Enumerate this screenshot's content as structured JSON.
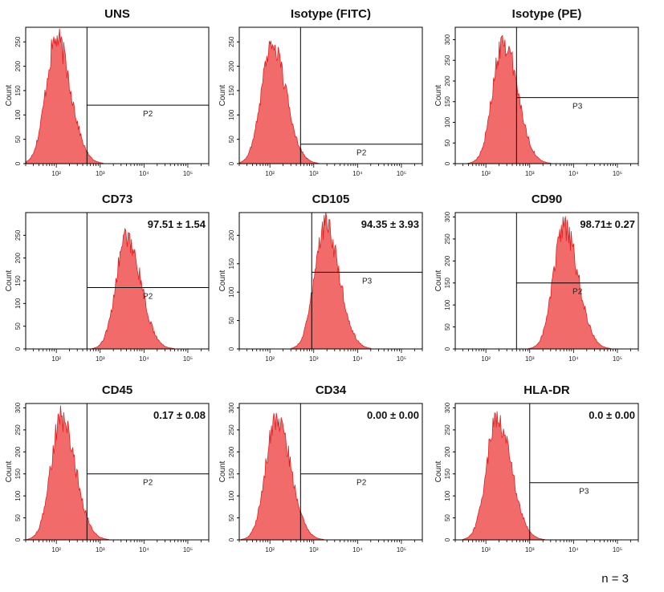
{
  "figure": {
    "footnote": "n = 3"
  },
  "colors": {
    "fill": "#f26b6b",
    "stroke": "#e02020",
    "frame": "#000000"
  },
  "chart_data": [
    {
      "type": "histogram",
      "title": "UNS",
      "stat": "",
      "gate": "P2",
      "ylabel": "Count",
      "xscale": "log",
      "xlim": [
        20,
        300000
      ],
      "ylim": [
        0,
        280
      ],
      "yticks": [
        0,
        50,
        100,
        150,
        200,
        250
      ],
      "xticks": [
        {
          "v": 100,
          "label": "10²"
        },
        {
          "v": 1000,
          "label": "10³"
        },
        {
          "v": 10000,
          "label": "10⁴"
        },
        {
          "v": 100000,
          "label": "10⁵"
        }
      ],
      "peak_x": 100,
      "peak_count": 275,
      "gate_x": 500,
      "gate_y": 120
    },
    {
      "type": "histogram",
      "title": "Isotype (FITC)",
      "stat": "",
      "gate": "P2",
      "ylabel": "Count",
      "xscale": "log",
      "xlim": [
        20,
        300000
      ],
      "ylim": [
        0,
        280
      ],
      "yticks": [
        0,
        50,
        100,
        150,
        200,
        250
      ],
      "xticks": [
        {
          "v": 100,
          "label": "10²"
        },
        {
          "v": 1000,
          "label": "10³"
        },
        {
          "v": 10000,
          "label": "10⁴"
        },
        {
          "v": 100000,
          "label": "10⁵"
        }
      ],
      "peak_x": 110,
      "peak_count": 265,
      "gate_x": 500,
      "gate_y": 40
    },
    {
      "type": "histogram",
      "title": "Isotype (PE)",
      "stat": "",
      "gate": "P3",
      "ylabel": "Count",
      "xscale": "log",
      "xlim": [
        20,
        300000
      ],
      "ylim": [
        0,
        330
      ],
      "yticks": [
        0,
        50,
        100,
        150,
        200,
        250,
        300
      ],
      "xticks": [
        {
          "v": 100,
          "label": "10²"
        },
        {
          "v": 1000,
          "label": "10³"
        },
        {
          "v": 10000,
          "label": "10⁴"
        },
        {
          "v": 100000,
          "label": "10⁵"
        }
      ],
      "peak_x": 250,
      "peak_count": 320,
      "gate_x": 500,
      "gate_y": 160
    },
    {
      "type": "histogram",
      "title": "CD73",
      "stat": "97.51 ± 1.54",
      "gate": "P2",
      "ylabel": "Count",
      "xscale": "log",
      "xlim": [
        20,
        300000
      ],
      "ylim": [
        0,
        300
      ],
      "yticks": [
        0,
        50,
        100,
        150,
        200,
        250
      ],
      "xticks": [
        {
          "v": 100,
          "label": "10²"
        },
        {
          "v": 1000,
          "label": "10³"
        },
        {
          "v": 10000,
          "label": "10⁴"
        },
        {
          "v": 100000,
          "label": "10⁵"
        }
      ],
      "peak_x": 4000,
      "peak_count": 265,
      "gate_x": 500,
      "gate_y": 135
    },
    {
      "type": "histogram",
      "title": "CD105",
      "stat": "94.35 ± 3.93",
      "gate": "P3",
      "ylabel": "Count",
      "xscale": "log",
      "xlim": [
        20,
        300000
      ],
      "ylim": [
        0,
        240
      ],
      "yticks": [
        0,
        50,
        100,
        150,
        200
      ],
      "xticks": [
        {
          "v": 100,
          "label": "10²"
        },
        {
          "v": 1000,
          "label": "10³"
        },
        {
          "v": 10000,
          "label": "10⁴"
        },
        {
          "v": 100000,
          "label": "10⁵"
        }
      ],
      "peak_x": 1800,
      "peak_count": 235,
      "gate_x": 900,
      "gate_y": 135
    },
    {
      "type": "histogram",
      "title": "CD90",
      "stat": "98.71± 0.27",
      "gate": "P2",
      "ylabel": "Count",
      "xscale": "log",
      "xlim": [
        20,
        300000
      ],
      "ylim": [
        0,
        310
      ],
      "yticks": [
        0,
        50,
        100,
        150,
        200,
        250,
        300
      ],
      "xticks": [
        {
          "v": 100,
          "label": "10²"
        },
        {
          "v": 1000,
          "label": "10³"
        },
        {
          "v": 10000,
          "label": "10⁴"
        },
        {
          "v": 100000,
          "label": "10⁵"
        }
      ],
      "peak_x": 6000,
      "peak_count": 295,
      "gate_x": 500,
      "gate_y": 150
    },
    {
      "type": "histogram",
      "title": "CD45",
      "stat": "0.17 ± 0.08",
      "gate": "P2",
      "ylabel": "Count",
      "xscale": "log",
      "xlim": [
        20,
        300000
      ],
      "ylim": [
        0,
        310
      ],
      "yticks": [
        0,
        50,
        100,
        150,
        200,
        250,
        300
      ],
      "xticks": [
        {
          "v": 100,
          "label": "10²"
        },
        {
          "v": 1000,
          "label": "10³"
        },
        {
          "v": 10000,
          "label": "10⁴"
        },
        {
          "v": 100000,
          "label": "10⁵"
        }
      ],
      "peak_x": 130,
      "peak_count": 295,
      "gate_x": 500,
      "gate_y": 150
    },
    {
      "type": "histogram",
      "title": "CD34",
      "stat": "0.00 ± 0.00",
      "gate": "P2",
      "ylabel": "Count",
      "xscale": "log",
      "xlim": [
        20,
        300000
      ],
      "ylim": [
        0,
        310
      ],
      "yticks": [
        0,
        50,
        100,
        150,
        200,
        250,
        300
      ],
      "xticks": [
        {
          "v": 100,
          "label": "10²"
        },
        {
          "v": 1000,
          "label": "10³"
        },
        {
          "v": 10000,
          "label": "10⁴"
        },
        {
          "v": 100000,
          "label": "10⁵"
        }
      ],
      "peak_x": 140,
      "peak_count": 300,
      "gate_x": 500,
      "gate_y": 150
    },
    {
      "type": "histogram",
      "title": "HLA-DR",
      "stat": "0.0 ± 0.00",
      "gate": "P3",
      "ylabel": "Count",
      "xscale": "log",
      "xlim": [
        20,
        300000
      ],
      "ylim": [
        0,
        310
      ],
      "yticks": [
        0,
        50,
        100,
        150,
        200,
        250,
        300
      ],
      "xticks": [
        {
          "v": 100,
          "label": "10²"
        },
        {
          "v": 1000,
          "label": "10³"
        },
        {
          "v": 10000,
          "label": "10⁴"
        },
        {
          "v": 100000,
          "label": "10⁵"
        }
      ],
      "peak_x": 180,
      "peak_count": 300,
      "gate_x": 1000,
      "gate_y": 130
    }
  ]
}
